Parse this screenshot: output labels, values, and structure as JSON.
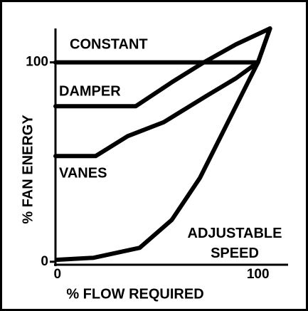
{
  "chart_data": {
    "type": "line",
    "x_label": "% FLOW REQUIRED",
    "y_label": "% FAN ENERGY",
    "xlim": [
      -1,
      115
    ],
    "ylim": [
      -1.5,
      117
    ],
    "xticks": [
      0,
      100
    ],
    "yticks": [
      0,
      100
    ],
    "series": [
      {
        "name": "CONSTANT",
        "color": "#000000",
        "x": [
          -1,
          100
        ],
        "values": [
          100,
          100
        ]
      },
      {
        "name": "DAMPER",
        "color": "#000000",
        "x": [
          -1,
          39,
          57,
          73,
          89,
          106
        ],
        "values": [
          78,
          78,
          90,
          100,
          109,
          117
        ]
      },
      {
        "name": "VANES",
        "color": "#000000",
        "x": [
          -1,
          19,
          35,
          53,
          74,
          89,
          100,
          106
        ],
        "values": [
          53,
          53,
          63,
          70,
          83,
          92,
          100,
          117
        ]
      },
      {
        "name": "ADJUSTABLE SPEED",
        "color": "#000000",
        "x": [
          0,
          18,
          41,
          57,
          71,
          85,
          96,
          100,
          106
        ],
        "values": [
          1,
          2,
          7,
          21,
          42,
          70,
          92,
          100,
          117
        ]
      }
    ]
  }
}
